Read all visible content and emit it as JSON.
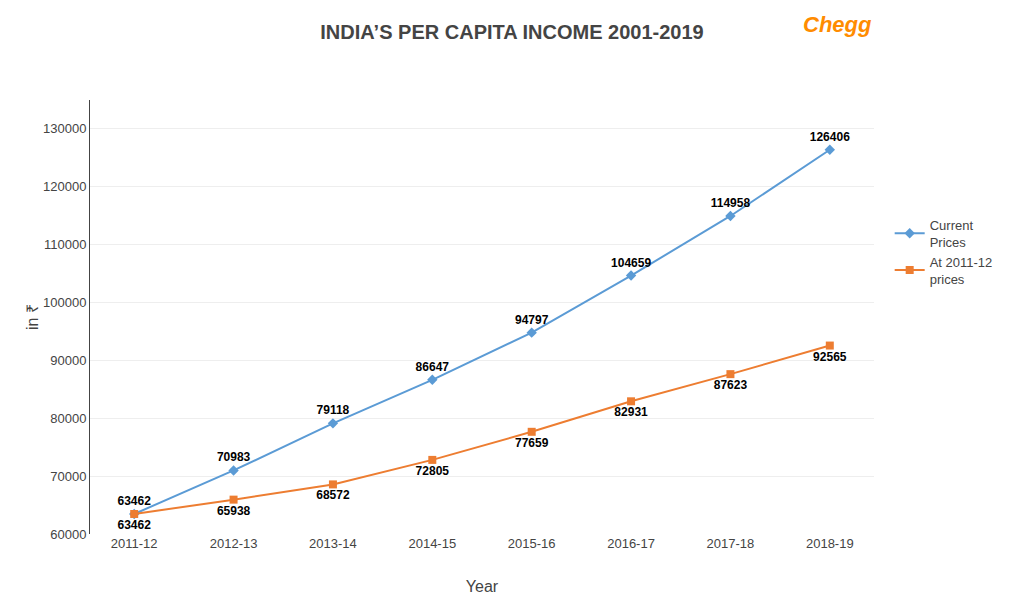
{
  "chart_data": {
    "type": "line",
    "title": "INDIA’S PER CAPITA INCOME 2001-2019",
    "x_label": "Year",
    "y_label": "in ₹",
    "categories": [
      "2011-12",
      "2012-13",
      "2013-14",
      "2014-15",
      "2015-16",
      "2016-17",
      "2017-18",
      "2018-19"
    ],
    "series": [
      {
        "name": "Current\nPrices",
        "color": "#5B9BD5",
        "marker": "diamond",
        "values": [
          63462,
          70983,
          79118,
          86647,
          94797,
          104659,
          114958,
          126406
        ]
      },
      {
        "name": "At 2011-12\nprices",
        "color": "#ED7D31",
        "marker": "square",
        "values": [
          63462,
          65938,
          68572,
          72805,
          77659,
          82931,
          87623,
          92565
        ]
      }
    ],
    "ylim": [
      60000,
      135000
    ],
    "yticks": [
      60000,
      70000,
      80000,
      90000,
      100000,
      110000,
      120000,
      130000
    ],
    "grid": true,
    "legend": "right",
    "data_labels": true,
    "annotations": [
      {
        "text": "Chegg",
        "color": "#FF8C00"
      }
    ]
  }
}
